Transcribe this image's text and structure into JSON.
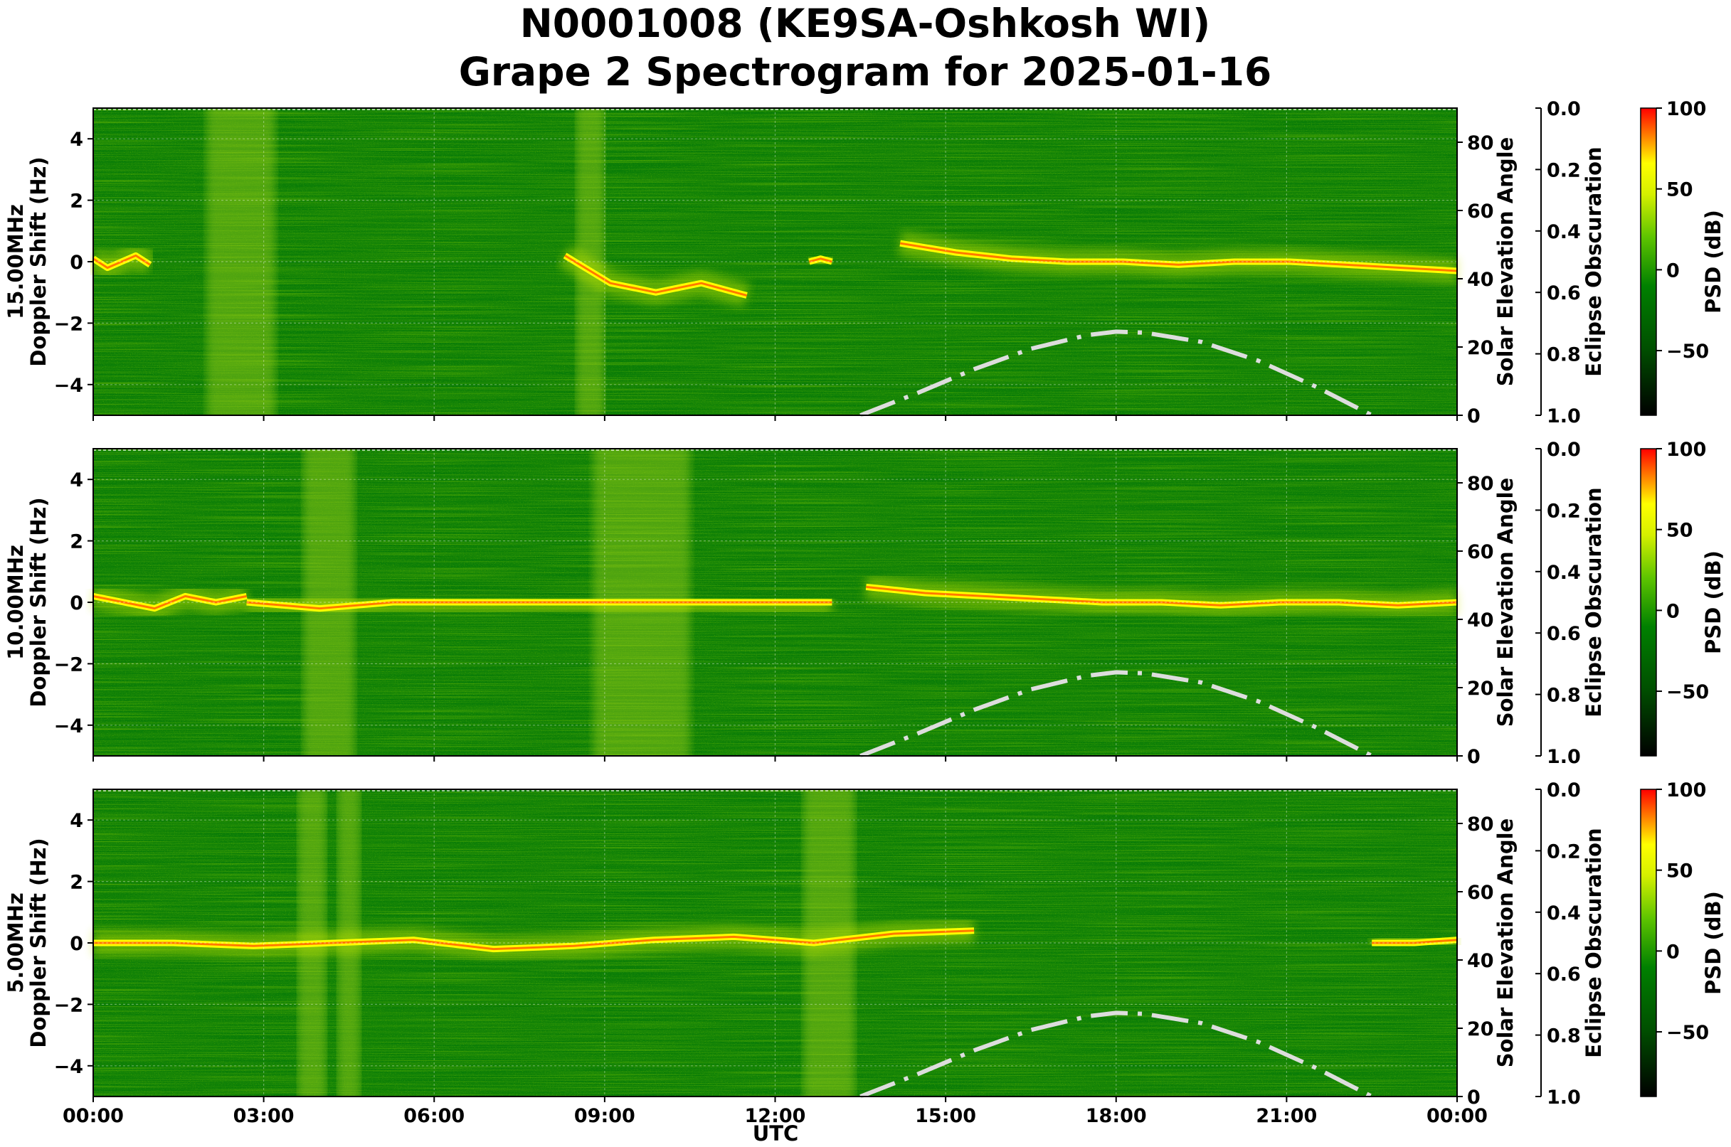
{
  "chart_data": {
    "type": "heatmap",
    "title": "N0001008 (KE9SA-Oshkosh WI)",
    "subtitle": "Grape 2 Spectrogram for 2025-01-16",
    "xlabel": "UTC",
    "x_ticks": [
      "00:00",
      "03:00",
      "06:00",
      "09:00",
      "12:00",
      "15:00",
      "18:00",
      "21:00",
      "00:00"
    ],
    "x_range_hours": [
      0,
      24
    ],
    "y_range_hz": [
      -5,
      5
    ],
    "y_ticks": [
      "4",
      "2",
      "0",
      "−2",
      "−4"
    ],
    "y_tick_values": [
      4,
      2,
      0,
      -2,
      -4
    ],
    "grid": true,
    "right_axis": {
      "label": "Solar Elevation Angle",
      "range": [
        0,
        90
      ],
      "ticks": [
        "80",
        "60",
        "40",
        "20",
        "0"
      ],
      "tick_values": [
        80,
        60,
        40,
        20,
        0
      ]
    },
    "eclipse_axis": {
      "label": "Eclipse Obscuration",
      "range": [
        0,
        1
      ],
      "ticks": [
        "0.0",
        "0.2",
        "0.4",
        "0.6",
        "0.8",
        "1.0"
      ],
      "tick_values": [
        0,
        0.2,
        0.4,
        0.6,
        0.8,
        1.0
      ]
    },
    "colorbar": {
      "label": "PSD (dB)",
      "range": [
        -90,
        100
      ],
      "ticks": [
        "100",
        "50",
        "0",
        "−50"
      ],
      "tick_values": [
        100,
        50,
        0,
        -50
      ],
      "colors": [
        "#000000",
        "#006400",
        "#008000",
        "#66cc00",
        "#ffff00",
        "#ff0000"
      ]
    },
    "solar_elevation": {
      "hours": [
        13.5,
        14.5,
        15.5,
        16.5,
        17.5,
        18.0,
        18.5,
        19.5,
        20.5,
        21.5,
        22.5
      ],
      "degrees": [
        0,
        6.5,
        13.5,
        19.5,
        23.5,
        24.5,
        24.2,
        21.5,
        16,
        8.5,
        0
      ],
      "color": "#dddddd"
    },
    "panels": [
      {
        "id": "15mhz",
        "name": "15.00MHz",
        "ylabel": "Doppler Shift (Hz)",
        "carrier": [
          {
            "start": 0.0,
            "end": 1.0,
            "offsets": [
              0.1,
              -0.2,
              0.0,
              0.2,
              -0.1
            ]
          },
          {
            "start": 8.3,
            "end": 11.5,
            "offsets": [
              0.2,
              -0.7,
              -1.0,
              -0.7,
              -1.1
            ]
          },
          {
            "start": 12.6,
            "end": 13.0,
            "offsets": [
              0.0,
              0.1,
              0.0
            ]
          },
          {
            "start": 14.2,
            "end": 24.0,
            "offsets": [
              0.6,
              0.3,
              0.1,
              0.0,
              0.0,
              -0.1,
              0.0,
              0.0,
              -0.1,
              -0.2,
              -0.3
            ]
          }
        ],
        "broadband_hours": [
          [
            2.0,
            3.2
          ],
          [
            8.5,
            9.0
          ]
        ]
      },
      {
        "id": "10mhz",
        "name": "10.00MHz",
        "ylabel": "Doppler Shift (Hz)",
        "carrier": [
          {
            "start": 0.0,
            "end": 2.7,
            "offsets": [
              0.2,
              0.0,
              -0.2,
              0.2,
              0.0,
              0.2
            ]
          },
          {
            "start": 2.7,
            "end": 13.0,
            "offsets": [
              0.0,
              -0.2,
              0.0,
              0.0,
              0.0,
              0.0,
              0.0,
              0.0,
              0.0
            ]
          },
          {
            "start": 13.6,
            "end": 24.0,
            "offsets": [
              0.5,
              0.3,
              0.2,
              0.1,
              0.0,
              0.0,
              -0.1,
              0.0,
              0.0,
              -0.1,
              0.0
            ]
          }
        ],
        "broadband_hours": [
          [
            3.7,
            4.6
          ],
          [
            8.8,
            10.5
          ]
        ]
      },
      {
        "id": "5mhz",
        "name": "5.00MHz",
        "ylabel": "Doppler Shift (Hz)",
        "carrier": [
          {
            "start": 0.0,
            "end": 15.5,
            "offsets": [
              0.0,
              0.0,
              -0.1,
              0.0,
              0.1,
              -0.2,
              -0.1,
              0.1,
              0.2,
              0.0,
              0.3,
              0.4
            ]
          },
          {
            "start": 22.5,
            "end": 24.0,
            "offsets": [
              0.0,
              0.0,
              0.1
            ]
          }
        ],
        "broadband_hours": [
          [
            3.6,
            4.1
          ],
          [
            4.3,
            4.7
          ],
          [
            12.5,
            13.4
          ]
        ]
      }
    ]
  }
}
